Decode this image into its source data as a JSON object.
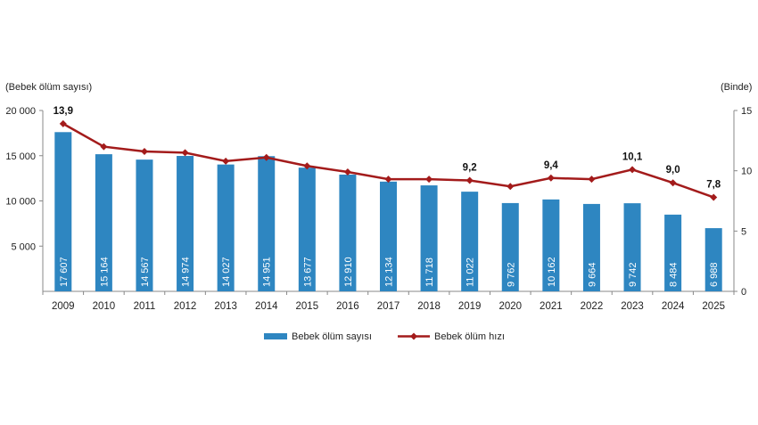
{
  "chart_data": {
    "type": "bar",
    "categories": [
      "2009",
      "2010",
      "2011",
      "2012",
      "2013",
      "2014",
      "2015",
      "2016",
      "2017",
      "2018",
      "2019",
      "2020",
      "2021",
      "2022",
      "2023",
      "2024",
      "2025"
    ],
    "bar_labels": [
      "17 607",
      "15 164",
      "14 567",
      "14 974",
      "14 027",
      "14 951",
      "13 677",
      "12 910",
      "12 134",
      "11 718",
      "11 022",
      "9 762",
      "10 162",
      "9 664",
      "9 742",
      "8 484",
      "6 988"
    ],
    "series": [
      {
        "name": "Bebek ölüm sayısı",
        "type": "bar",
        "axis": "left",
        "color": "#2e86c1",
        "values": [
          17607,
          15164,
          14567,
          14974,
          14027,
          14951,
          13677,
          12910,
          12134,
          11718,
          11022,
          9762,
          10162,
          9664,
          9742,
          8484,
          6988
        ]
      },
      {
        "name": "Bebek ölüm hızı",
        "type": "line",
        "axis": "right",
        "color": "#a31b1b",
        "values": [
          13.9,
          12.0,
          11.6,
          11.5,
          10.8,
          11.1,
          10.4,
          9.9,
          9.3,
          9.3,
          9.2,
          8.7,
          9.4,
          9.3,
          10.1,
          9.0,
          7.8
        ]
      }
    ],
    "point_labels": [
      {
        "category": "2009",
        "text": "13,9"
      },
      {
        "category": "2019",
        "text": "9,2"
      },
      {
        "category": "2021",
        "text": "9,4"
      },
      {
        "category": "2023",
        "text": "10,1"
      },
      {
        "category": "2024",
        "text": "9,0"
      },
      {
        "category": "2025",
        "text": "7,8"
      }
    ],
    "left_axis": {
      "label": "(Bebek ölüm sayısı)",
      "ylim": [
        0,
        20000
      ],
      "ticks": [
        5000,
        10000,
        15000,
        20000
      ],
      "tick_labels": [
        "5 000",
        "10 000",
        "15 000",
        "20 000"
      ]
    },
    "right_axis": {
      "label": "(Binde)",
      "ylim": [
        0,
        15
      ],
      "ticks": [
        0,
        5,
        10,
        15
      ],
      "tick_labels": [
        "0",
        "5",
        "10",
        "15"
      ]
    },
    "grid": false,
    "legend": "bottom-center"
  }
}
